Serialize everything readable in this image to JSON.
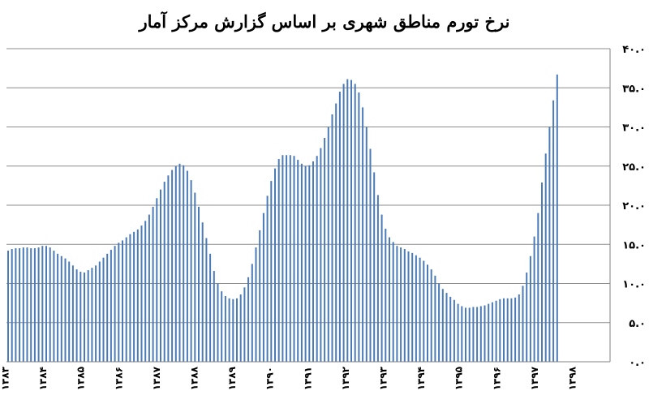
{
  "chart_data": {
    "type": "bar",
    "title": "نرخ تورم مناطق شهری بر اساس گزارش مرکز آمار",
    "xlabel": "",
    "ylabel": "",
    "ylim": [
      0,
      40
    ],
    "y_ticks": [
      "۰.۰",
      "۵.۰",
      "۱۰.۰",
      "۱۵.۰",
      "۲۰.۰",
      "۲۵.۰",
      "۳۰.۰",
      "۳۵.۰",
      "۴۰.۰"
    ],
    "x_tick_labels": [
      "۱۳۸۳",
      "۱۳۸۴",
      "۱۳۸۵",
      "۱۳۸۶",
      "۱۳۸۷",
      "۱۳۸۸",
      "۱۳۸۹",
      "۱۳۹۰",
      "۱۳۹۱",
      "۱۳۹۲",
      "۱۳۹۳",
      "۱۳۹۴",
      "۱۳۹۵",
      "۱۳۹۶",
      "۱۳۹۷",
      "۱۳۹۸"
    ],
    "grid": true,
    "bar_color": "#4a7ab8",
    "values": [
      14.2,
      14.4,
      14.5,
      14.5,
      14.6,
      14.6,
      14.5,
      14.5,
      14.6,
      14.8,
      14.8,
      14.6,
      14.2,
      13.8,
      13.5,
      13.2,
      12.8,
      12.3,
      11.8,
      11.5,
      11.4,
      11.7,
      12.0,
      12.3,
      12.8,
      13.3,
      13.8,
      14.3,
      14.8,
      15.2,
      15.5,
      15.9,
      16.3,
      16.6,
      16.9,
      17.4,
      18.0,
      18.8,
      19.8,
      20.9,
      22.0,
      23.0,
      23.8,
      24.5,
      25.0,
      25.3,
      25.1,
      24.4,
      23.2,
      21.6,
      19.8,
      17.8,
      15.8,
      13.8,
      11.6,
      10.0,
      9.0,
      8.4,
      8.1,
      8.0,
      8.1,
      8.6,
      9.5,
      10.8,
      12.5,
      14.6,
      16.8,
      19.0,
      21.2,
      23.1,
      24.7,
      25.9,
      26.4,
      26.4,
      26.4,
      26.3,
      25.8,
      25.3,
      25.0,
      25.1,
      25.6,
      26.3,
      27.3,
      28.6,
      30.0,
      31.6,
      33.0,
      34.5,
      35.5,
      36.1,
      36.0,
      35.5,
      34.4,
      32.5,
      30.0,
      27.2,
      24.2,
      21.3,
      18.8,
      17.0,
      15.9,
      15.3,
      14.8,
      14.6,
      14.4,
      14.1,
      13.9,
      13.6,
      13.3,
      12.9,
      12.4,
      11.8,
      11.0,
      10.0,
      9.3,
      8.8,
      8.3,
      7.9,
      7.4,
      7.1,
      6.9,
      6.9,
      7.0,
      7.0,
      7.1,
      7.2,
      7.4,
      7.6,
      7.8,
      8.0,
      8.1,
      8.1,
      8.1,
      8.2,
      8.6,
      9.7,
      11.4,
      13.5,
      16.0,
      19.0,
      22.9,
      26.6,
      30.0,
      33.4,
      36.7
    ]
  }
}
